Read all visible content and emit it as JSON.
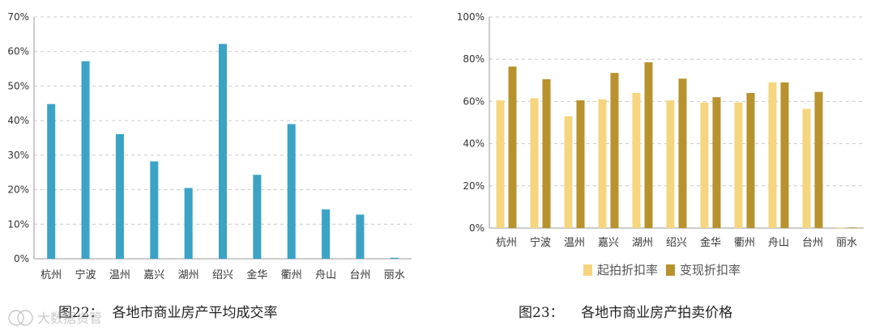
{
  "captions": {
    "left": "图22：  各地市商业房产平均成交率",
    "right": "图23：    各地市商业房产拍卖价格"
  },
  "watermark": "大数据资管",
  "colors": {
    "bar_left": "#3aa3c6",
    "start": "#f5d57e",
    "realized": "#b8922c",
    "grid": "#c9c9c9",
    "axis": "#9a9a9a",
    "text": "#333333",
    "legend_text": "#555555"
  },
  "chart_data": [
    {
      "type": "bar",
      "title": "",
      "categories": [
        "杭州",
        "宁波",
        "温州",
        "嘉兴",
        "湖州",
        "绍兴",
        "金华",
        "衢州",
        "舟山",
        "台州",
        "丽水"
      ],
      "values": [
        44.8,
        57.2,
        36.1,
        28.2,
        20.5,
        62.2,
        24.3,
        39.0,
        14.3,
        12.8,
        0.3
      ],
      "ylim": [
        0,
        70
      ],
      "yticks": [
        "0%",
        "10%",
        "20%",
        "30%",
        "40%",
        "50%",
        "60%",
        "70%"
      ],
      "grid": true
    },
    {
      "type": "bar",
      "title": "",
      "categories": [
        "杭州",
        "宁波",
        "温州",
        "嘉兴",
        "湖州",
        "绍兴",
        "金华",
        "衢州",
        "舟山",
        "台州",
        "丽水"
      ],
      "series": [
        {
          "name": "起拍折扣率",
          "values": [
            60.5,
            61.5,
            53.0,
            61.0,
            64.0,
            60.5,
            59.5,
            59.5,
            69.0,
            56.5,
            0.3
          ]
        },
        {
          "name": "变现折扣率",
          "values": [
            76.5,
            70.5,
            60.5,
            73.5,
            78.5,
            70.8,
            62.0,
            64.0,
            69.0,
            64.5,
            0.3
          ]
        }
      ],
      "ylim": [
        0,
        100
      ],
      "yticks": [
        "0%",
        "20%",
        "40%",
        "60%",
        "80%",
        "100%"
      ],
      "grid": true,
      "legend": "bottom"
    }
  ]
}
